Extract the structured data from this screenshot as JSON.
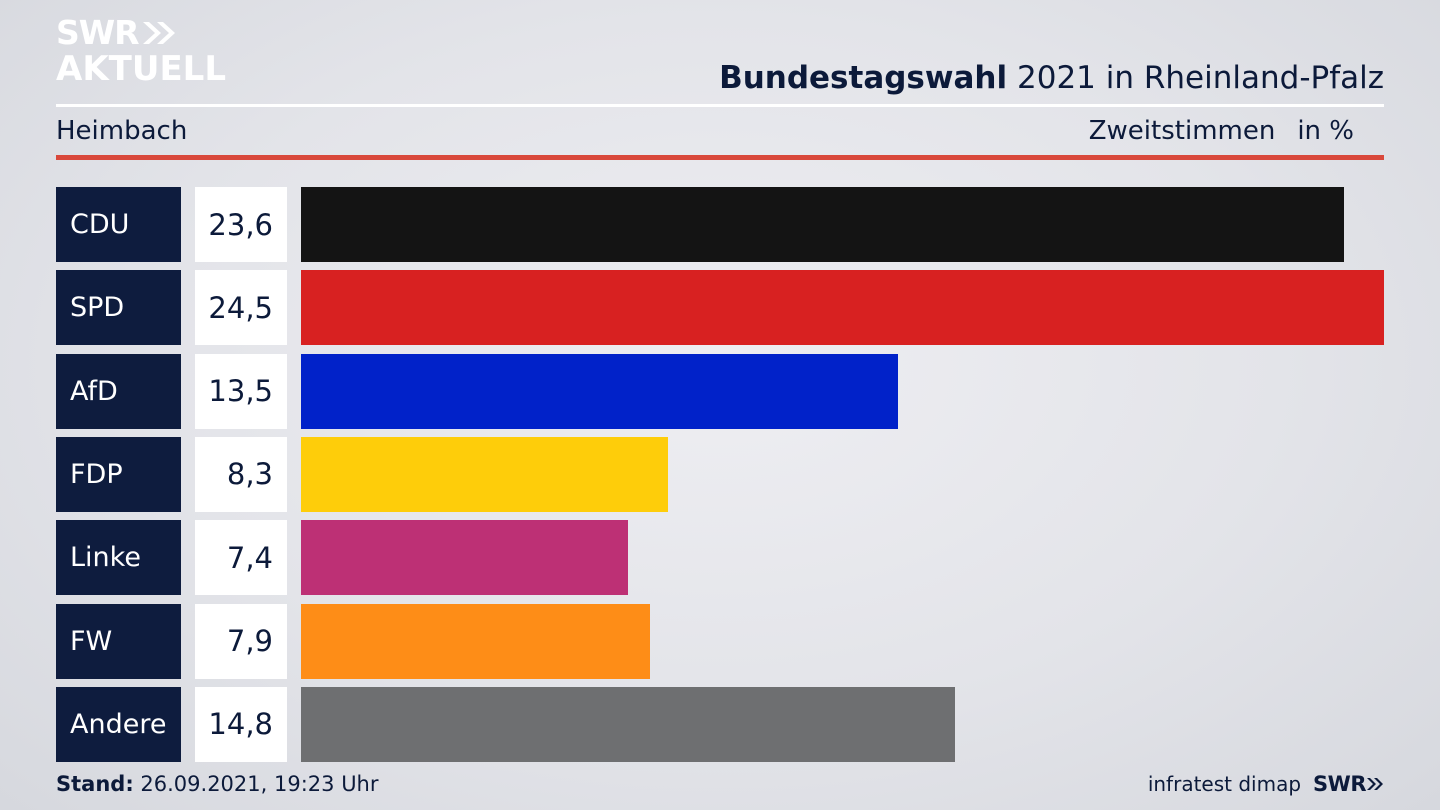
{
  "branding": {
    "logo_line1": "SWR",
    "logo_line2": "AKTUELL",
    "footer_logo": "SWR",
    "source": "infratest dimap"
  },
  "header": {
    "title_bold": "Bundestagswahl",
    "title_rest": "2021 in Rheinland-Pfalz",
    "region": "Heimbach",
    "measure": "Zweitstimmen",
    "unit": "in %"
  },
  "footer": {
    "stand_label": "Stand:",
    "stand_value": "26.09.2021, 19:23 Uhr"
  },
  "colors": {
    "accent_red": "#d9483b",
    "label_bg": "#0e1c3e"
  },
  "chart_data": {
    "type": "bar",
    "orientation": "horizontal",
    "categories": [
      "CDU",
      "SPD",
      "AfD",
      "FDP",
      "Linke",
      "FW",
      "Andere"
    ],
    "value_labels": [
      "23,6",
      "24,5",
      "13,5",
      "8,3",
      "7,4",
      "7,9",
      "14,8"
    ],
    "values": [
      23.6,
      24.5,
      13.5,
      8.3,
      7.4,
      7.9,
      14.8
    ],
    "bar_colors": [
      "#141414",
      "#d82121",
      "#0122c9",
      "#fecd0a",
      "#bd3075",
      "#fe8d17",
      "#6e6f71"
    ],
    "xlim": [
      0,
      24.5
    ],
    "grid": false,
    "legend": "none"
  }
}
